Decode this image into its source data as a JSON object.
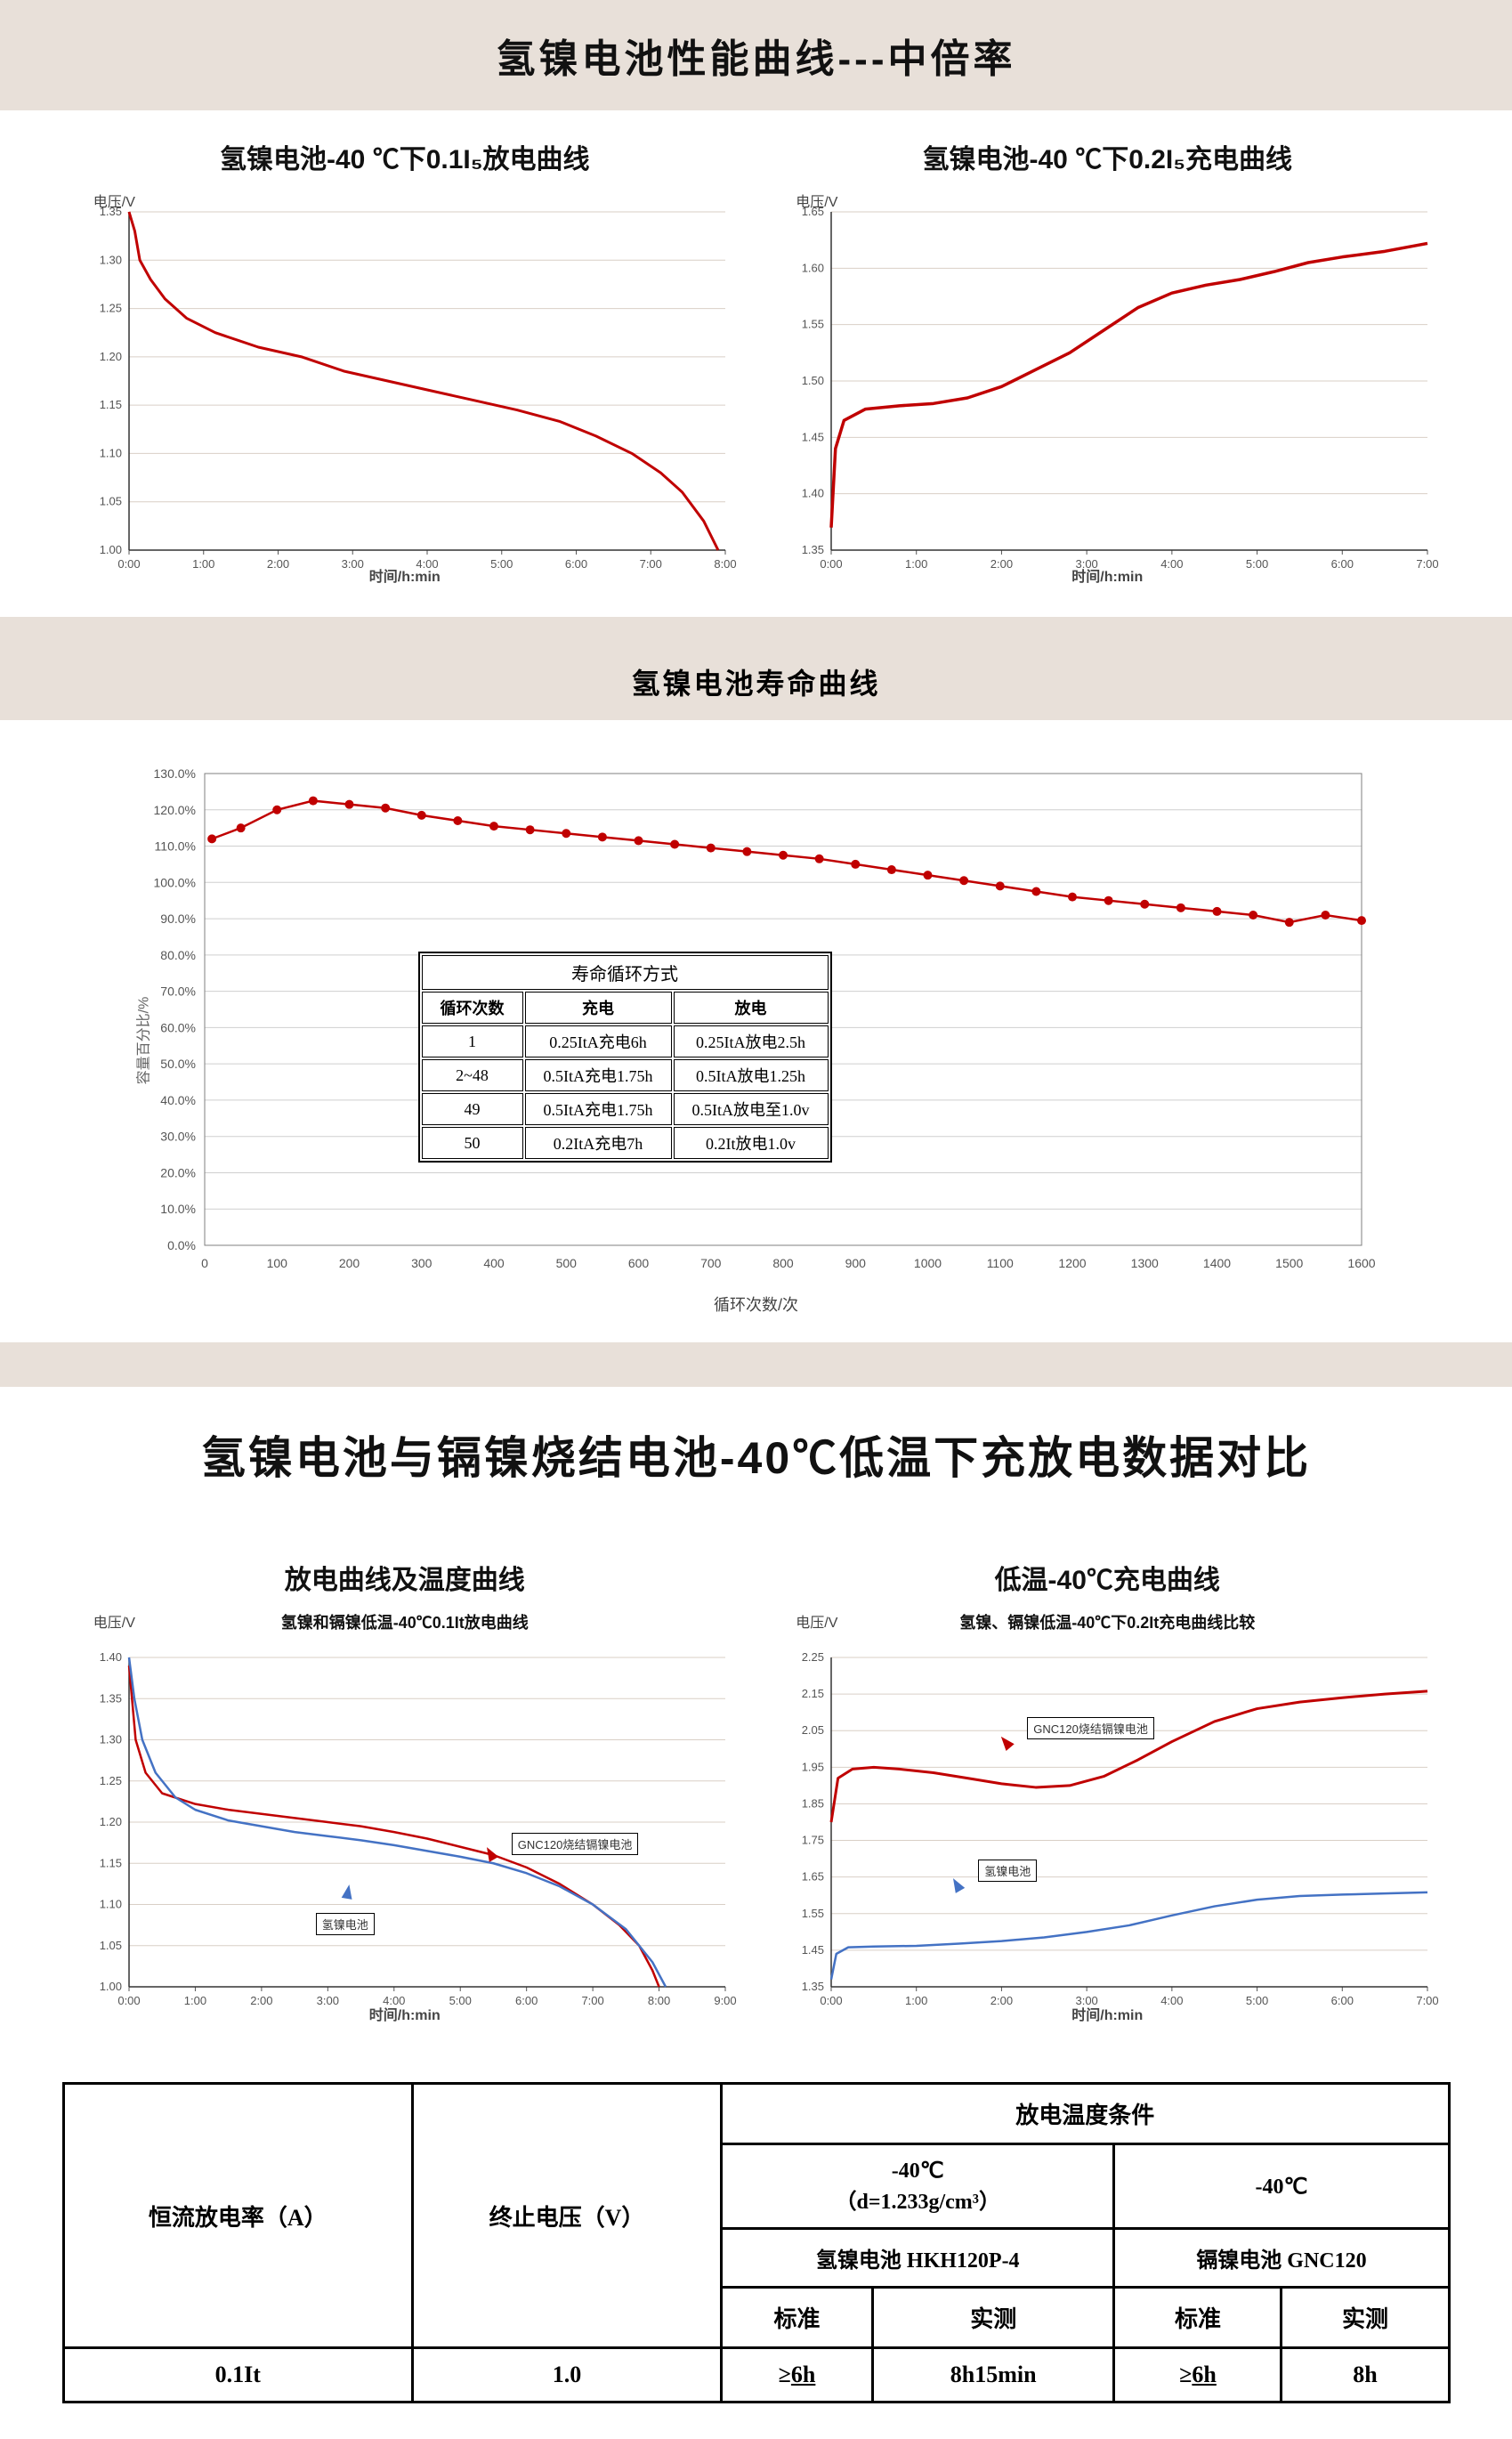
{
  "banners": {
    "top": "氢镍电池性能曲线---中倍率",
    "life": "氢镍电池寿命曲线",
    "compare": "氢镍电池与镉镍烧结电池-40℃低温下充放电数据对比"
  },
  "chart1": {
    "title": "氢镍电池-40 ℃下0.1I₅放电曲线",
    "ylabel": "电压/V",
    "xlabel": "时间/h:min",
    "type": "line",
    "line_color": "#c00000",
    "line_width": 3,
    "grid_color": "#d9cfc6",
    "border_color": "#333",
    "bg": "#ffffff",
    "ylim": [
      1.0,
      1.35
    ],
    "ytick_step": 0.05,
    "xlim": [
      0,
      8.3
    ],
    "xticks": [
      "0:00",
      "1:00",
      "2:00",
      "3:00",
      "4:00",
      "5:00",
      "6:00",
      "7:00",
      "8:00"
    ],
    "data": [
      [
        0,
        1.35
      ],
      [
        0.08,
        1.33
      ],
      [
        0.15,
        1.3
      ],
      [
        0.3,
        1.28
      ],
      [
        0.5,
        1.26
      ],
      [
        0.8,
        1.24
      ],
      [
        1.2,
        1.225
      ],
      [
        1.8,
        1.21
      ],
      [
        2.4,
        1.2
      ],
      [
        3.0,
        1.185
      ],
      [
        3.6,
        1.175
      ],
      [
        4.2,
        1.165
      ],
      [
        4.8,
        1.155
      ],
      [
        5.4,
        1.145
      ],
      [
        6.0,
        1.133
      ],
      [
        6.5,
        1.118
      ],
      [
        7.0,
        1.1
      ],
      [
        7.4,
        1.08
      ],
      [
        7.7,
        1.06
      ],
      [
        8.0,
        1.03
      ],
      [
        8.2,
        1.0
      ]
    ],
    "label_fontsize": 14,
    "tick_fontsize": 12
  },
  "chart2": {
    "title": "氢镍电池-40 ℃下0.2I₅充电曲线",
    "ylabel": "电压/V",
    "xlabel": "时间/h:min",
    "type": "line",
    "line_color": "#c00000",
    "line_width": 3.5,
    "grid_color": "#d9cfc6",
    "border_color": "#333",
    "bg": "#ffffff",
    "ylim": [
      1.35,
      1.65
    ],
    "ytick_step": 0.05,
    "xlim": [
      0,
      7.0
    ],
    "xticks": [
      "0:00",
      "1:00",
      "2:00",
      "3:00",
      "4:00",
      "5:00",
      "6:00",
      "7:00"
    ],
    "data": [
      [
        0,
        1.37
      ],
      [
        0.05,
        1.44
      ],
      [
        0.15,
        1.465
      ],
      [
        0.4,
        1.475
      ],
      [
        0.8,
        1.478
      ],
      [
        1.2,
        1.48
      ],
      [
        1.6,
        1.485
      ],
      [
        2.0,
        1.495
      ],
      [
        2.4,
        1.51
      ],
      [
        2.8,
        1.525
      ],
      [
        3.2,
        1.545
      ],
      [
        3.6,
        1.565
      ],
      [
        4.0,
        1.578
      ],
      [
        4.4,
        1.585
      ],
      [
        4.8,
        1.59
      ],
      [
        5.2,
        1.597
      ],
      [
        5.6,
        1.605
      ],
      [
        6.0,
        1.61
      ],
      [
        6.5,
        1.615
      ],
      [
        7.0,
        1.622
      ]
    ],
    "label_fontsize": 14,
    "tick_fontsize": 12
  },
  "chart3": {
    "type": "line-markers",
    "ylabel": "容量百分比/%",
    "xlabel": "循环次数/次",
    "line_color": "#c00000",
    "marker_color": "#c00000",
    "marker_size": 5,
    "line_width": 2.5,
    "grid_color": "#cfcfcf",
    "border_color": "#7f7f7f",
    "bg": "#ffffff",
    "ylim": [
      0,
      130
    ],
    "ytick_step": 10,
    "ytick_suffix": "%",
    "xlim": [
      0,
      1600
    ],
    "xtick_step": 100,
    "data": [
      [
        10,
        112
      ],
      [
        50,
        115
      ],
      [
        100,
        120
      ],
      [
        150,
        122.5
      ],
      [
        200,
        121.5
      ],
      [
        250,
        120.5
      ],
      [
        300,
        118.5
      ],
      [
        350,
        117
      ],
      [
        400,
        115.5
      ],
      [
        450,
        114.5
      ],
      [
        500,
        113.5
      ],
      [
        550,
        112.5
      ],
      [
        600,
        111.5
      ],
      [
        650,
        110.5
      ],
      [
        700,
        109.5
      ],
      [
        750,
        108.5
      ],
      [
        800,
        107.5
      ],
      [
        850,
        106.5
      ],
      [
        900,
        105
      ],
      [
        950,
        103.5
      ],
      [
        1000,
        102
      ],
      [
        1050,
        100.5
      ],
      [
        1100,
        99
      ],
      [
        1150,
        97.5
      ],
      [
        1200,
        96
      ],
      [
        1250,
        95
      ],
      [
        1300,
        94
      ],
      [
        1350,
        93
      ],
      [
        1400,
        92
      ],
      [
        1450,
        91
      ],
      [
        1500,
        89
      ],
      [
        1550,
        91
      ],
      [
        1600,
        89.5
      ]
    ],
    "inset_table": {
      "header": "寿命循环方式",
      "columns": [
        "循环次数",
        "充电",
        "放电"
      ],
      "rows": [
        [
          "1",
          "0.25ItA充电6h",
          "0.25ItA放电2.5h"
        ],
        [
          "2~48",
          "0.5ItA充电1.75h",
          "0.5ItA放电1.25h"
        ],
        [
          "49",
          "0.5ItA充电1.75h",
          "0.5ItA放电至1.0v"
        ],
        [
          "50",
          "0.2ItA充电7h",
          "0.2It放电1.0v"
        ]
      ]
    }
  },
  "chart4": {
    "title": "放电曲线及温度曲线",
    "subtitle": "氢镍和镉镍低温-40℃0.1It放电曲线",
    "ylabel": "电压/V",
    "xlabel": "时间/h:min",
    "type": "line",
    "bg": "#ffffff",
    "grid_color": "#d9cfc6",
    "border_color": "#333",
    "ylim": [
      1.0,
      1.4
    ],
    "ytick_step": 0.05,
    "xlim": [
      0,
      9.0
    ],
    "xticks": [
      "0:00",
      "1:00",
      "2:00",
      "3:00",
      "4:00",
      "5:00",
      "6:00",
      "7:00",
      "8:00",
      "9:00"
    ],
    "series": [
      {
        "name": "GNC120烧结镉镍电池",
        "color": "#c00000",
        "width": 2.5,
        "data": [
          [
            0,
            1.39
          ],
          [
            0.1,
            1.3
          ],
          [
            0.25,
            1.26
          ],
          [
            0.5,
            1.235
          ],
          [
            1,
            1.222
          ],
          [
            1.5,
            1.215
          ],
          [
            2,
            1.21
          ],
          [
            2.5,
            1.205
          ],
          [
            3,
            1.2
          ],
          [
            3.5,
            1.195
          ],
          [
            4,
            1.188
          ],
          [
            4.5,
            1.18
          ],
          [
            5,
            1.17
          ],
          [
            5.5,
            1.16
          ],
          [
            6,
            1.145
          ],
          [
            6.5,
            1.125
          ],
          [
            7,
            1.1
          ],
          [
            7.4,
            1.075
          ],
          [
            7.7,
            1.05
          ],
          [
            7.9,
            1.02
          ],
          [
            8.0,
            1.0
          ]
        ]
      },
      {
        "name": "氢镍电池",
        "color": "#4472c4",
        "width": 2.5,
        "data": [
          [
            0,
            1.4
          ],
          [
            0.08,
            1.35
          ],
          [
            0.2,
            1.3
          ],
          [
            0.4,
            1.26
          ],
          [
            0.7,
            1.23
          ],
          [
            1.0,
            1.215
          ],
          [
            1.5,
            1.202
          ],
          [
            2.0,
            1.195
          ],
          [
            2.5,
            1.188
          ],
          [
            3.0,
            1.183
          ],
          [
            3.5,
            1.178
          ],
          [
            4.0,
            1.172
          ],
          [
            4.5,
            1.165
          ],
          [
            5.0,
            1.158
          ],
          [
            5.5,
            1.15
          ],
          [
            6.0,
            1.138
          ],
          [
            6.5,
            1.122
          ],
          [
            7.0,
            1.1
          ],
          [
            7.5,
            1.07
          ],
          [
            7.9,
            1.03
          ],
          [
            8.1,
            1.0
          ]
        ]
      }
    ],
    "labels": [
      {
        "text": "GNC120烧结镉镍电池",
        "color": "#c00000"
      },
      {
        "text": "氢镍电池",
        "color": "#4472c4"
      }
    ]
  },
  "chart5": {
    "title": "低温-40℃充电曲线",
    "subtitle": "氢镍、镉镍低温-40℃下0.2It充电曲线比较",
    "ylabel": "电压/V",
    "xlabel": "时间/h:min",
    "type": "line",
    "bg": "#ffffff",
    "grid_color": "#d9cfc6",
    "border_color": "#333",
    "ylim": [
      1.35,
      2.25
    ],
    "ytick_step": 0.1,
    "xlim": [
      0,
      7.0
    ],
    "xticks": [
      "0:00",
      "1:00",
      "2:00",
      "3:00",
      "4:00",
      "5:00",
      "6:00",
      "7:00"
    ],
    "series": [
      {
        "name": "GNC120烧结镉镍电池",
        "color": "#c00000",
        "width": 3,
        "data": [
          [
            0,
            1.8
          ],
          [
            0.08,
            1.92
          ],
          [
            0.25,
            1.945
          ],
          [
            0.5,
            1.95
          ],
          [
            0.8,
            1.945
          ],
          [
            1.2,
            1.935
          ],
          [
            1.6,
            1.92
          ],
          [
            2.0,
            1.905
          ],
          [
            2.4,
            1.895
          ],
          [
            2.8,
            1.9
          ],
          [
            3.2,
            1.925
          ],
          [
            3.6,
            1.97
          ],
          [
            4.0,
            2.02
          ],
          [
            4.5,
            2.075
          ],
          [
            5.0,
            2.11
          ],
          [
            5.5,
            2.128
          ],
          [
            6.0,
            2.14
          ],
          [
            6.5,
            2.15
          ],
          [
            7.0,
            2.158
          ]
        ]
      },
      {
        "name": "氢镍电池",
        "color": "#4472c4",
        "width": 2.5,
        "data": [
          [
            0,
            1.37
          ],
          [
            0.06,
            1.44
          ],
          [
            0.2,
            1.458
          ],
          [
            0.5,
            1.46
          ],
          [
            1.0,
            1.462
          ],
          [
            1.5,
            1.468
          ],
          [
            2.0,
            1.475
          ],
          [
            2.5,
            1.485
          ],
          [
            3.0,
            1.5
          ],
          [
            3.5,
            1.518
          ],
          [
            4.0,
            1.545
          ],
          [
            4.5,
            1.57
          ],
          [
            5.0,
            1.588
          ],
          [
            5.5,
            1.598
          ],
          [
            6.0,
            1.602
          ],
          [
            6.5,
            1.605
          ],
          [
            7.0,
            1.608
          ]
        ]
      }
    ],
    "labels": [
      {
        "text": "GNC120烧结镉镍电池",
        "color": "#c00000"
      },
      {
        "text": "氢镍电池",
        "color": "#4472c4"
      }
    ]
  },
  "compare_table": {
    "header_main": "放电温度条件",
    "row_headers": [
      "恒流放电率（A）",
      "终止电压（V）"
    ],
    "col1_top": "-40℃\n（d=1.233g/cm³）",
    "col2_top": "-40℃",
    "col1_sub": "氢镍电池 HKH120P-4",
    "col2_sub": "镉镍电池 GNC120",
    "sub_cols": [
      "标准",
      "实测",
      "标准",
      "实测"
    ],
    "data_row": [
      "0.1It",
      "1.0",
      "≥6h",
      "8h15min",
      "≥6h",
      "8h"
    ]
  }
}
